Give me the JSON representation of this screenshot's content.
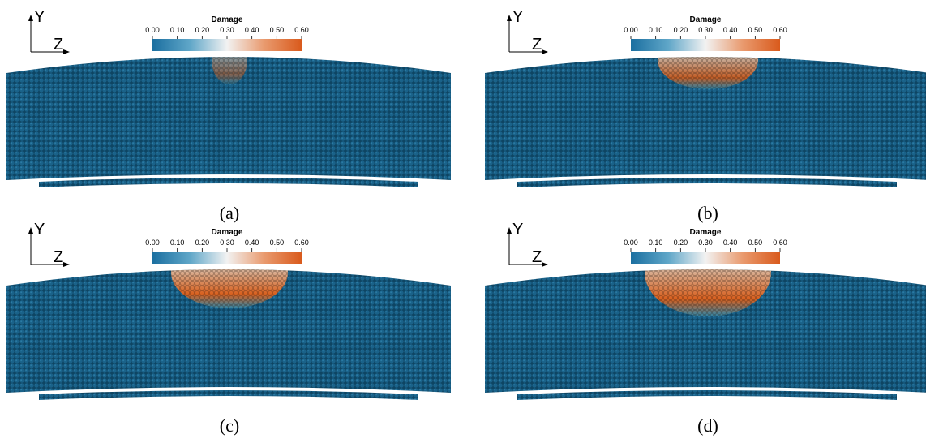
{
  "panels": [
    {
      "label": "(a)",
      "axes": {
        "y": "Y",
        "z": "Z"
      },
      "colorbar": {
        "title": "Damage",
        "ticks": [
          "0.00",
          "0.10",
          "0.20",
          "0.30",
          "0.40",
          "0.50",
          "0.60"
        ]
      }
    },
    {
      "label": "(b)",
      "axes": {
        "y": "Y",
        "z": "Z"
      },
      "colorbar": {
        "title": "Damage",
        "ticks": [
          "0.00",
          "0.10",
          "0.20",
          "0.30",
          "0.40",
          "0.50",
          "0.60"
        ]
      }
    },
    {
      "label": "(c)",
      "axes": {
        "y": "Y",
        "z": "Z"
      },
      "colorbar": {
        "title": "Damage",
        "ticks": [
          "0.00",
          "0.10",
          "0.20",
          "0.30",
          "0.40",
          "0.50",
          "0.60"
        ]
      }
    },
    {
      "label": "(d)",
      "axes": {
        "y": "Y",
        "z": "Z"
      },
      "colorbar": {
        "title": "Damage",
        "ticks": [
          "0.00",
          "0.10",
          "0.20",
          "0.30",
          "0.40",
          "0.50",
          "0.60"
        ]
      }
    }
  ]
}
